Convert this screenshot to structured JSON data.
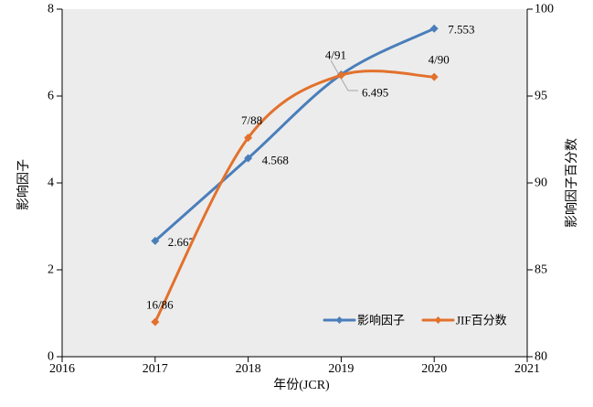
{
  "figure": {
    "background": "#ffffff",
    "plot_background": "#ececec",
    "axis_color": "#000000"
  },
  "chart_data": {
    "type": "line",
    "title": "",
    "smooth_lines": true,
    "grid": false,
    "x": [
      2017,
      2018,
      2019,
      2020
    ],
    "x_axis": {
      "label": "年份(JCR)",
      "range": [
        2016,
        2021
      ],
      "ticks": [
        "2016",
        "2017",
        "2018",
        "2019",
        "2020",
        "2021"
      ],
      "tick_values": [
        2016,
        2017,
        2018,
        2019,
        2020,
        2021
      ]
    },
    "y_left_axis": {
      "label": "影响因子",
      "range": [
        0,
        8
      ],
      "ticks": [
        "0",
        "2",
        "4",
        "6",
        "8"
      ],
      "tick_values": [
        0,
        2,
        4,
        6,
        8
      ]
    },
    "y_right_axis": {
      "label": "影响因子百分数",
      "range": [
        80,
        100
      ],
      "ticks": [
        "80",
        "85",
        "90",
        "95",
        "100"
      ],
      "tick_values": [
        80,
        85,
        90,
        95,
        100
      ]
    },
    "series": [
      {
        "name": "影响因子",
        "axis": "left",
        "color": "#4a7ebb",
        "marker": "diamond",
        "values": [
          2.667,
          4.568,
          6.495,
          7.553
        ],
        "point_labels": [
          "2.667",
          "4.568",
          "6.495",
          "7.553"
        ]
      },
      {
        "name": "JIF百分数",
        "axis": "right",
        "color": "#e2712c",
        "marker": "diamond",
        "values": [
          82.0,
          92.6,
          96.2,
          96.1
        ],
        "point_labels": [
          "16/86",
          "7/88",
          "4/91",
          "4/90"
        ]
      }
    ],
    "legend": {
      "position": "bottom-right-inside",
      "entries": [
        "影响因子",
        "JIF百分数"
      ]
    },
    "leader_line_color": "#a6a6a6"
  }
}
